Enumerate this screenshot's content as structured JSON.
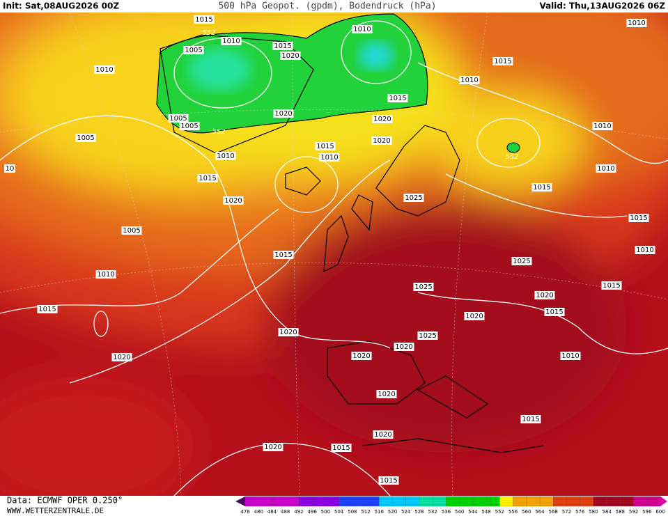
{
  "header": {
    "init": "Init: Sat,08AUG2026 00Z",
    "title": "500 hPa Geopot. (gpdm), Bodendruck (hPa)",
    "valid": "Valid: Thu,13AUG2026 06Z"
  },
  "footer": {
    "source": "Data: ECMWF OPER 0.250°",
    "website": "WWW.WETTERZENTRALE.DE"
  },
  "isobar_labels": [
    "1015",
    "552",
    "1010",
    "1005",
    "1015",
    "1020",
    "1010",
    "1015",
    "1010",
    "1010",
    "1010",
    "1015",
    "1020",
    "1005",
    "1005",
    "552",
    "1020",
    "1010",
    "1005",
    "1020",
    "1015",
    "552",
    "1010",
    "1010",
    "1010",
    "10",
    "1015",
    "1015",
    "1025",
    "1020",
    "1005",
    "1015",
    "1010",
    "1015",
    "1025",
    "1010",
    "1025",
    "1015",
    "1020",
    "1015",
    "1015",
    "1020",
    "1020",
    "1025",
    "1020",
    "1020",
    "1020",
    "1010",
    "1020",
    "1015",
    "1020",
    "1020",
    "1015",
    "1015"
  ],
  "colorbar_labels": [
    476,
    480,
    484,
    488,
    492,
    496,
    500,
    504,
    508,
    512,
    516,
    520,
    524,
    528,
    532,
    536,
    540,
    544,
    548,
    552,
    556,
    560,
    564,
    568,
    572,
    576,
    580,
    584,
    588,
    592,
    596,
    600
  ]
}
